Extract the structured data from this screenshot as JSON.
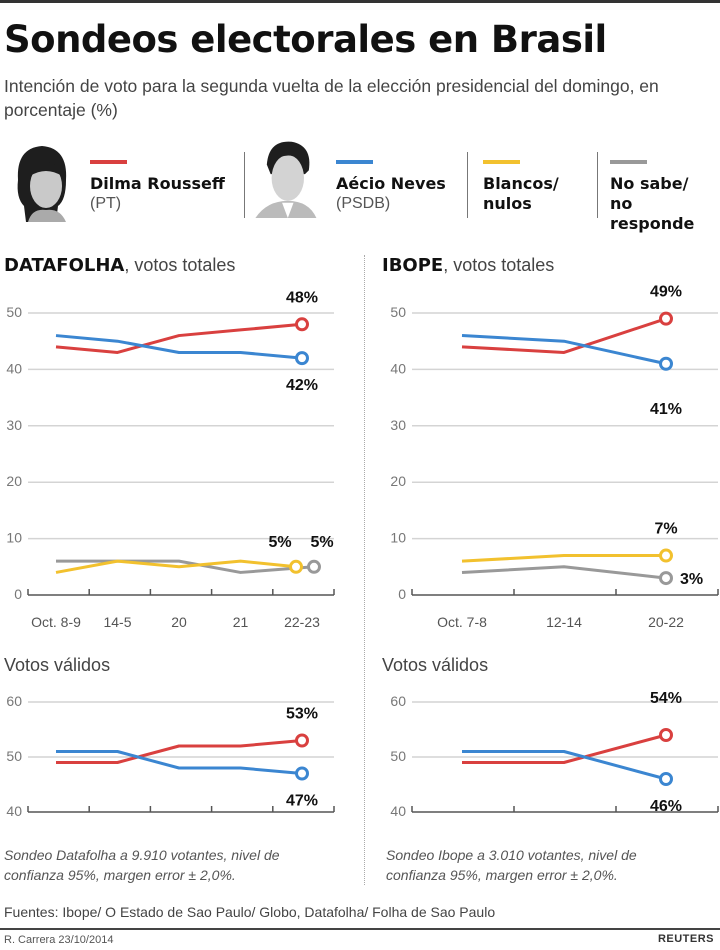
{
  "header": {
    "title": "Sondeos electorales en Brasil",
    "subtitle": "Intención de voto para la segunda vuelta de la elección presidencial del domingo, en porcentaje (%)"
  },
  "legend": [
    {
      "name": "Dilma Rousseff",
      "party": "(PT)",
      "color": "#d9403f"
    },
    {
      "name": "Aécio Neves",
      "party": "(PSDB)",
      "color": "#3b86d1"
    },
    {
      "name": "Blancos/",
      "party": "nulos",
      "color": "#f2c12e"
    },
    {
      "name": "No sabe/",
      "party": "no responde",
      "color": "#999999"
    }
  ],
  "panels": {
    "datafolha_title_bold": "DATAFOLHA",
    "datafolha_title_rest": ", votos totales",
    "ibope_title_bold": "IBOPE",
    "ibope_title_rest": ", votos totales",
    "valid_title_left": "Votos válidos",
    "valid_title_right": "Votos válidos"
  },
  "notes": {
    "datafolha": "Sondeo Datafolha a 9.910 votantes, nivel de confianza 95%, margen error ± 2,0%.",
    "ibope": "Sondeo Ibope a 3.010 votantes, nivel de confianza 95%, margen error ± 2,0%."
  },
  "footer": {
    "sources": "Fuentes: Ibope/ O Estado de Sao Paulo/ Globo, Datafolha/ Folha de Sao Paulo",
    "credit": "R. Carrera 23/10/2014",
    "brand": "REUTERS"
  },
  "chart_data": [
    {
      "id": "datafolha_total",
      "type": "line",
      "title": "DATAFOLHA, votos totales",
      "categories": [
        "Oct. 8-9",
        "14-5",
        "20",
        "21",
        "22-23"
      ],
      "ylim": [
        0,
        50
      ],
      "yticks": [
        0,
        10,
        20,
        30,
        40,
        50
      ],
      "grid": true,
      "series": [
        {
          "name": "Dilma Rousseff",
          "color": "#d9403f",
          "values": [
            44,
            43,
            46,
            47,
            48
          ],
          "end_label": "48%"
        },
        {
          "name": "Aécio Neves",
          "color": "#3b86d1",
          "values": [
            46,
            45,
            43,
            43,
            42
          ],
          "end_label": "42%"
        },
        {
          "name": "No sabe/no responde",
          "color": "#999999",
          "values": [
            6,
            6,
            6,
            4,
            5
          ],
          "end_label": "5%"
        },
        {
          "name": "Blancos/nulos",
          "color": "#f2c12e",
          "values": [
            4,
            6,
            5,
            6,
            5
          ],
          "end_label": "5%"
        }
      ]
    },
    {
      "id": "ibope_total",
      "type": "line",
      "title": "IBOPE, votos totales",
      "categories": [
        "Oct. 7-8",
        "12-14",
        "20-22"
      ],
      "ylim": [
        0,
        50
      ],
      "yticks": [
        0,
        10,
        20,
        30,
        40,
        50
      ],
      "grid": true,
      "series": [
        {
          "name": "Dilma Rousseff",
          "color": "#d9403f",
          "values": [
            44,
            43,
            49
          ],
          "end_label": "49%"
        },
        {
          "name": "Aécio Neves",
          "color": "#3b86d1",
          "values": [
            46,
            45,
            41
          ],
          "end_label": "41%"
        },
        {
          "name": "Blancos/nulos",
          "color": "#f2c12e",
          "values": [
            6,
            7,
            7
          ],
          "end_label": "7%"
        },
        {
          "name": "No sabe/no responde",
          "color": "#999999",
          "values": [
            4,
            5,
            3
          ],
          "end_label": "3%"
        }
      ]
    },
    {
      "id": "datafolha_valid",
      "type": "line",
      "title": "Votos válidos",
      "categories": [
        "Oct. 8-9",
        "14-5",
        "20",
        "21",
        "22-23"
      ],
      "ylim": [
        40,
        60
      ],
      "yticks": [
        40,
        50,
        60
      ],
      "grid": true,
      "series": [
        {
          "name": "Dilma Rousseff",
          "color": "#d9403f",
          "values": [
            49,
            49,
            52,
            52,
            53
          ],
          "end_label": "53%"
        },
        {
          "name": "Aécio Neves",
          "color": "#3b86d1",
          "values": [
            51,
            51,
            48,
            48,
            47
          ],
          "end_label": "47%"
        }
      ]
    },
    {
      "id": "ibope_valid",
      "type": "line",
      "title": "Votos válidos",
      "categories": [
        "Oct. 7-8",
        "12-14",
        "20-22"
      ],
      "ylim": [
        40,
        60
      ],
      "yticks": [
        40,
        50,
        60
      ],
      "grid": true,
      "series": [
        {
          "name": "Dilma Rousseff",
          "color": "#d9403f",
          "values": [
            49,
            49,
            54
          ],
          "end_label": "54%"
        },
        {
          "name": "Aécio Neves",
          "color": "#3b86d1",
          "values": [
            51,
            51,
            46
          ],
          "end_label": "46%"
        }
      ]
    }
  ]
}
